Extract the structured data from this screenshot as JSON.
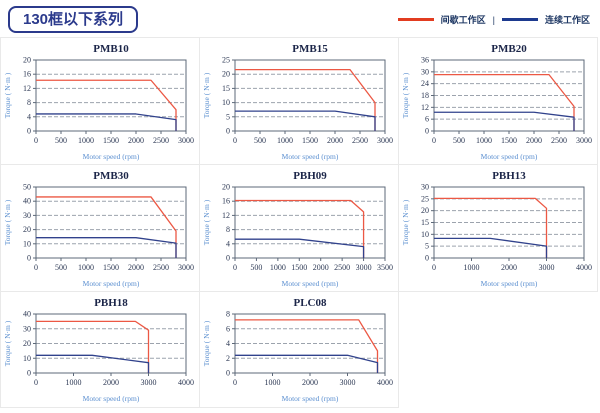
{
  "header": {
    "title": "130框以下系列"
  },
  "legend": {
    "position": "top-right",
    "separator": "|",
    "items": [
      {
        "label": "间歇工作区",
        "color": "#e23c20",
        "role": "intermittent"
      },
      {
        "label": "连续工作区",
        "color": "#1d3a8f",
        "role": "continuous"
      }
    ]
  },
  "colors": {
    "intermittent": "#ec5844",
    "continuous": "#31428c",
    "axis_text": "#2e3a55",
    "title_text": "#1c2649",
    "label_text": "#5b8fd0",
    "plot_border": "#5c6878",
    "gridline": "#9ca3ad",
    "cell_border": "#e9e9e9",
    "header_accent": "#2b3a8c"
  },
  "chart_data": [
    {
      "type": "line",
      "title": "PMB10",
      "xlabel": "Motor speed (rpm)",
      "ylabel": "Torque ( N·m )",
      "xlim": [
        0,
        3000
      ],
      "ylim": [
        0,
        20
      ],
      "xticks": [
        0,
        500,
        1000,
        1500,
        2000,
        2500,
        3000
      ],
      "yticks": [
        0,
        4,
        8,
        12,
        16,
        20
      ],
      "grid": "dashed-horizontal",
      "series": [
        {
          "name": "间歇工作区",
          "role": "intermittent",
          "points": [
            [
              0,
              14.3
            ],
            [
              2300,
              14.3
            ],
            [
              2800,
              6
            ],
            [
              2800,
              0
            ]
          ]
        },
        {
          "name": "连续工作区",
          "role": "continuous",
          "points": [
            [
              0,
              4.8
            ],
            [
              2000,
              4.8
            ],
            [
              2800,
              3.2
            ],
            [
              2800,
              0
            ]
          ]
        }
      ]
    },
    {
      "type": "line",
      "title": "PMB15",
      "xlabel": "Motor speed (rpm)",
      "ylabel": "Torque ( N·m )",
      "xlim": [
        0,
        3000
      ],
      "ylim": [
        0,
        25
      ],
      "xticks": [
        0,
        500,
        1000,
        1500,
        2000,
        2500,
        3000
      ],
      "yticks": [
        0,
        5,
        10,
        15,
        20,
        25
      ],
      "grid": "dashed-horizontal",
      "series": [
        {
          "name": "间歇工作区",
          "role": "intermittent",
          "points": [
            [
              0,
              21.6
            ],
            [
              2300,
              21.6
            ],
            [
              2800,
              10
            ],
            [
              2800,
              0
            ]
          ]
        },
        {
          "name": "连续工作区",
          "role": "continuous",
          "points": [
            [
              0,
              7
            ],
            [
              2000,
              7
            ],
            [
              2800,
              5
            ],
            [
              2800,
              0
            ]
          ]
        }
      ]
    },
    {
      "type": "line",
      "title": "PMB20",
      "xlabel": "Motor speed (rpm)",
      "ylabel": "Torque ( N·m )",
      "xlim": [
        0,
        3000
      ],
      "ylim": [
        0,
        36
      ],
      "xticks": [
        0,
        500,
        1000,
        1500,
        2000,
        2500,
        3000
      ],
      "yticks": [
        0,
        6,
        12,
        18,
        24,
        30,
        36
      ],
      "grid": "dashed-horizontal",
      "series": [
        {
          "name": "间歇工作区",
          "role": "intermittent",
          "points": [
            [
              0,
              28.6
            ],
            [
              2300,
              28.6
            ],
            [
              2800,
              12.5
            ],
            [
              2800,
              0
            ]
          ]
        },
        {
          "name": "连续工作区",
          "role": "continuous",
          "points": [
            [
              0,
              9.5
            ],
            [
              2000,
              9.5
            ],
            [
              2800,
              7
            ],
            [
              2800,
              0
            ]
          ]
        }
      ]
    },
    {
      "type": "line",
      "title": "PMB30",
      "xlabel": "Motor speed (rpm)",
      "ylabel": "Torque ( N·m )",
      "xlim": [
        0,
        3000
      ],
      "ylim": [
        0,
        50
      ],
      "xticks": [
        0,
        500,
        1000,
        1500,
        2000,
        2500,
        3000
      ],
      "yticks": [
        0,
        10,
        20,
        30,
        40,
        50
      ],
      "grid": "dashed-horizontal",
      "series": [
        {
          "name": "间歇工作区",
          "role": "intermittent",
          "points": [
            [
              0,
              43
            ],
            [
              2300,
              43
            ],
            [
              2800,
              19
            ],
            [
              2800,
              0
            ]
          ]
        },
        {
          "name": "连续工作区",
          "role": "continuous",
          "points": [
            [
              0,
              14.3
            ],
            [
              2000,
              14.3
            ],
            [
              2800,
              10.5
            ],
            [
              2800,
              0
            ]
          ]
        }
      ]
    },
    {
      "type": "line",
      "title": "PBH09",
      "xlabel": "Motor speed (rpm)",
      "ylabel": "Torque ( N·m )",
      "xlim": [
        0,
        3500
      ],
      "ylim": [
        0,
        20
      ],
      "xticks": [
        0,
        500,
        1000,
        1500,
        2000,
        2500,
        3000,
        3500
      ],
      "yticks": [
        0,
        4,
        8,
        12,
        16,
        20
      ],
      "grid": "dashed-horizontal",
      "series": [
        {
          "name": "间歇工作区",
          "role": "intermittent",
          "points": [
            [
              0,
              16.2
            ],
            [
              2700,
              16.2
            ],
            [
              3000,
              13
            ],
            [
              3000,
              0
            ]
          ]
        },
        {
          "name": "连续工作区",
          "role": "continuous",
          "points": [
            [
              0,
              5.3
            ],
            [
              1500,
              5.3
            ],
            [
              3000,
              3.2
            ],
            [
              3000,
              0
            ]
          ]
        }
      ]
    },
    {
      "type": "line",
      "title": "PBH13",
      "xlabel": "Motor speed (rpm)",
      "ylabel": "Torque ( N·m )",
      "xlim": [
        0,
        4000
      ],
      "ylim": [
        0,
        30
      ],
      "xticks": [
        0,
        1000,
        2000,
        3000,
        4000
      ],
      "yticks": [
        0,
        5,
        10,
        15,
        20,
        25,
        30
      ],
      "grid": "dashed-horizontal",
      "series": [
        {
          "name": "间歇工作区",
          "role": "intermittent",
          "points": [
            [
              0,
              25.2
            ],
            [
              2700,
              25.2
            ],
            [
              3000,
              21
            ],
            [
              3000,
              0
            ]
          ]
        },
        {
          "name": "连续工作区",
          "role": "continuous",
          "points": [
            [
              0,
              8.3
            ],
            [
              1500,
              8.3
            ],
            [
              3000,
              5
            ],
            [
              3000,
              0
            ]
          ]
        }
      ]
    },
    {
      "type": "line",
      "title": "PBH18",
      "xlabel": "Motor speed (rpm)",
      "ylabel": "Torque ( N·m )",
      "xlim": [
        0,
        4000
      ],
      "ylim": [
        0,
        40
      ],
      "xticks": [
        0,
        1000,
        2000,
        3000,
        4000
      ],
      "yticks": [
        0,
        10,
        20,
        30,
        40
      ],
      "grid": "dashed-horizontal",
      "series": [
        {
          "name": "间歇工作区",
          "role": "intermittent",
          "points": [
            [
              0,
              35
            ],
            [
              2650,
              35
            ],
            [
              3000,
              29
            ],
            [
              3000,
              0
            ]
          ]
        },
        {
          "name": "连续工作区",
          "role": "continuous",
          "points": [
            [
              0,
              12
            ],
            [
              1500,
              12
            ],
            [
              3000,
              7
            ],
            [
              3000,
              0
            ]
          ]
        }
      ]
    },
    {
      "type": "line",
      "title": "PLC08",
      "xlabel": "Motor speed (rpm)",
      "ylabel": "Torque ( N·m )",
      "xlim": [
        0,
        4000
      ],
      "ylim": [
        0,
        8
      ],
      "xticks": [
        0,
        1000,
        2000,
        3000,
        4000
      ],
      "yticks": [
        0,
        2,
        4,
        6,
        8
      ],
      "grid": "dashed-horizontal",
      "series": [
        {
          "name": "间歇工作区",
          "role": "intermittent",
          "points": [
            [
              0,
              7.2
            ],
            [
              3300,
              7.2
            ],
            [
              3800,
              3
            ],
            [
              3800,
              0
            ]
          ]
        },
        {
          "name": "连续工作区",
          "role": "continuous",
          "points": [
            [
              0,
              2.4
            ],
            [
              3000,
              2.4
            ],
            [
              3800,
              1.4
            ],
            [
              3800,
              0
            ]
          ]
        }
      ]
    }
  ]
}
